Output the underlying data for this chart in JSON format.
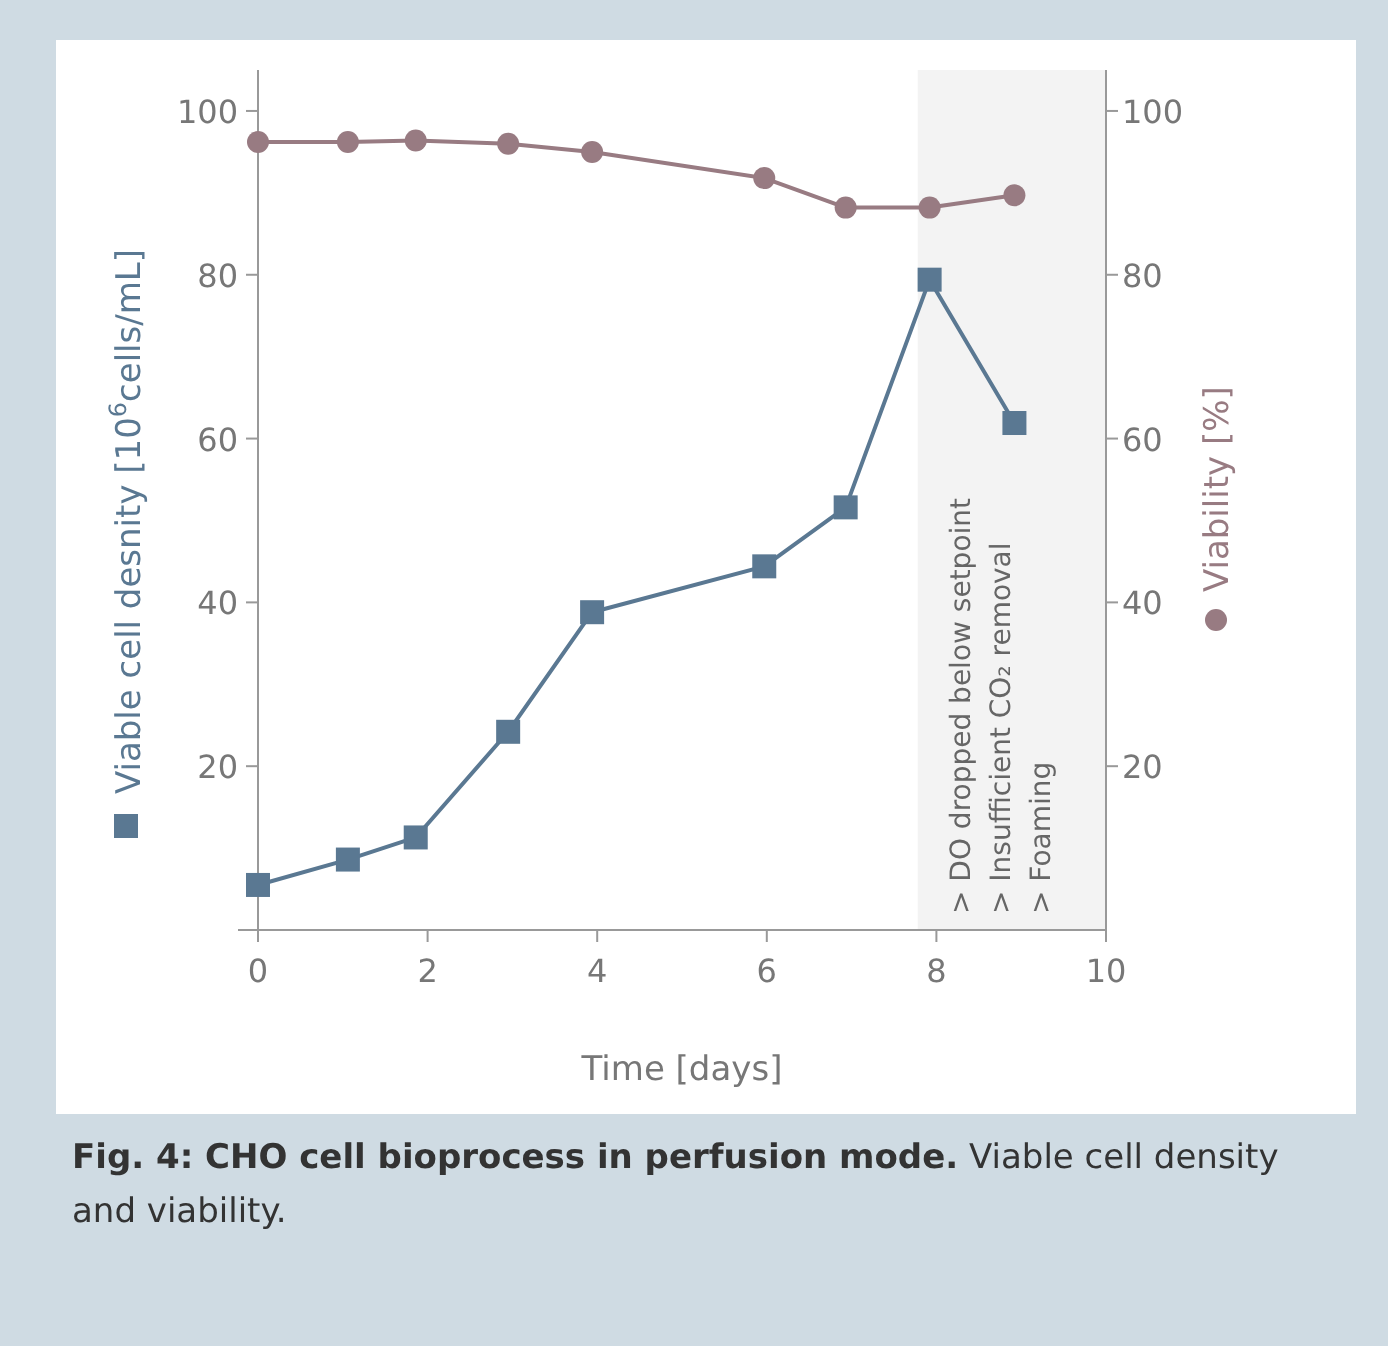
{
  "chart_data": {
    "type": "line",
    "title": "Fig. 4: CHO cell bioprocess in perfusion mode.",
    "subtitle": "Viable cell density and viability.",
    "xlabel": "Time [days]",
    "ylabel": "Viable cell desnity [10$^{6}$cells/mL]",
    "y2label": "Viability [%]",
    "xlim": [
      0,
      10
    ],
    "xticks": [
      0,
      2,
      4,
      6,
      8,
      10
    ],
    "ylim": [
      0,
      105
    ],
    "yticks": [
      20,
      40,
      60,
      80,
      100
    ],
    "y2lim": [
      0,
      105
    ],
    "y2ticks": [
      20,
      40,
      60,
      80,
      100
    ],
    "x": [
      0,
      1.06,
      1.86,
      2.95,
      3.94,
      5.97,
      6.93,
      7.92,
      8.92
    ],
    "series": [
      {
        "color": "#5a7892",
        "marker": "square",
        "values": [
          5.5,
          8.6,
          11.3,
          24.2,
          38.8,
          44.4,
          51.6,
          79.4,
          61.9
        ]
      },
      {
        "color": "#987b82",
        "marker": "circle",
        "axis": "y2",
        "values": [
          96.2,
          96.2,
          96.4,
          96,
          95,
          91.8,
          88.2,
          88.2,
          89.7
        ]
      }
    ],
    "bands": [
      {
        "axis": "x",
        "from": 7.78,
        "to": 10,
        "color": "#f3f3f3",
        "label": "> DO dropped below setpoint\n> Insufficient CO₂ removal\n> Foaming"
      }
    ]
  }
}
